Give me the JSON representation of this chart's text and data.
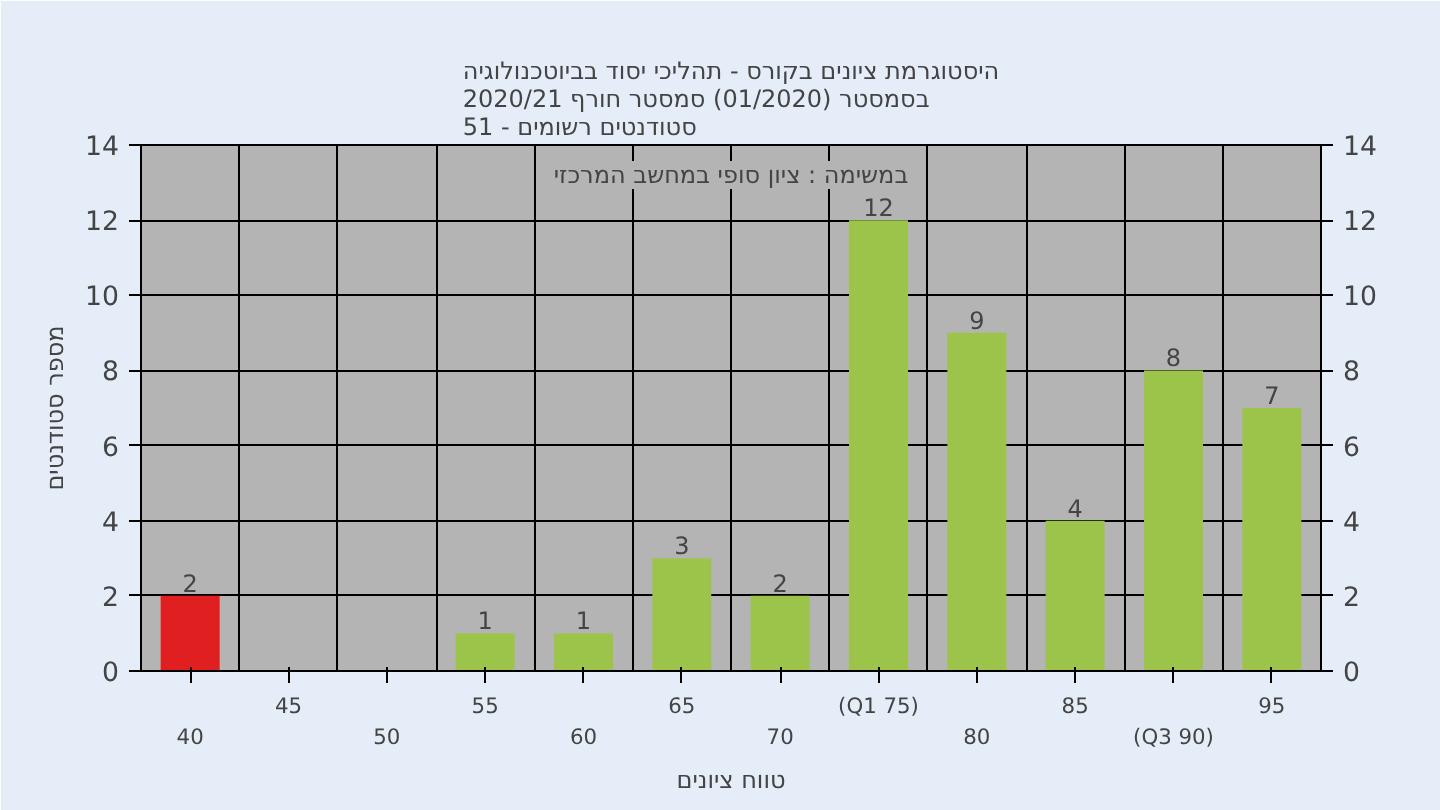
{
  "chart_data": {
    "type": "bar",
    "title": "היסטוגרמת ציונים בקורס - תהליכי יסוד בביוטכנולוגיה\nבסמסטר  (01/2020)  סמסטר חורף 2020/21\nסטודנטים רשומים - 51",
    "xlabel": "טווח ציונים",
    "ylabel": "מספר סטודנטים",
    "annotations": [
      "במשימה : ציון סופי במחשב המרכזי"
    ],
    "categories": [
      "40",
      "45",
      "50",
      "55",
      "60",
      "65",
      "70",
      "(Q1 75)",
      "80",
      "85",
      "(Q3 90)",
      "95"
    ],
    "series": [
      {
        "colors": [
          "#e02020",
          "#9cc44a",
          "#9cc44a",
          "#9cc44a",
          "#9cc44a",
          "#9cc44a",
          "#9cc44a",
          "#9cc44a",
          "#9cc44a",
          "#9cc44a",
          "#9cc44a",
          "#9cc44a"
        ],
        "values": [
          2,
          0,
          0,
          1,
          1,
          3,
          2,
          12,
          9,
          4,
          8,
          7
        ],
        "value_labels": [
          "2",
          null,
          null,
          "1",
          "1",
          "3",
          "2",
          "12",
          "9",
          "4",
          "8",
          "7"
        ]
      }
    ],
    "ylim": [
      0,
      14
    ],
    "yticks": [
      0,
      2,
      4,
      6,
      8,
      10,
      12,
      14
    ],
    "y2lim": [
      0,
      14
    ],
    "y2ticks": [
      0,
      2,
      4,
      6,
      8,
      10,
      12,
      14
    ],
    "grid": true
  }
}
